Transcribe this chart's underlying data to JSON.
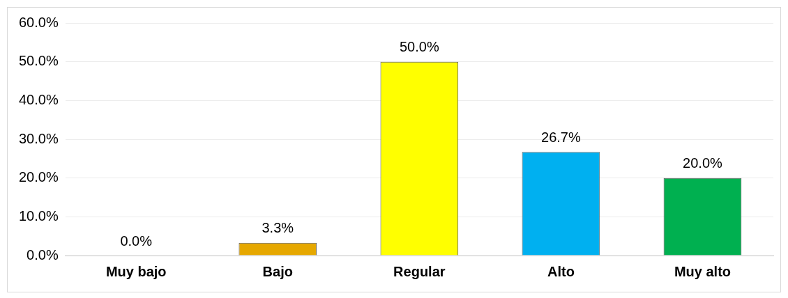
{
  "chart_data": {
    "type": "bar",
    "categories": [
      "Muy bajo",
      "Bajo",
      "Regular",
      "Alto",
      "Muy alto"
    ],
    "values": [
      0,
      3.3,
      50,
      26.7,
      20
    ],
    "colors": [
      "#c00000",
      "#e6a800",
      "#ffff00",
      "#00b0f0",
      "#00b050"
    ],
    "value_labels": [
      "0.0%",
      "3.3%",
      "50.0%",
      "26.7%",
      "20.0%"
    ],
    "ylim": [
      0,
      60
    ],
    "yticks": [
      {
        "value": 0,
        "label": "0.0%"
      },
      {
        "value": 10,
        "label": "10.0%"
      },
      {
        "value": 20,
        "label": "20.0%"
      },
      {
        "value": 30,
        "label": "30.0%"
      },
      {
        "value": 40,
        "label": "40.0%"
      },
      {
        "value": 50,
        "label": "50.0%"
      },
      {
        "value": 60,
        "label": "60.0%"
      }
    ],
    "grid": "y",
    "legend": false
  }
}
